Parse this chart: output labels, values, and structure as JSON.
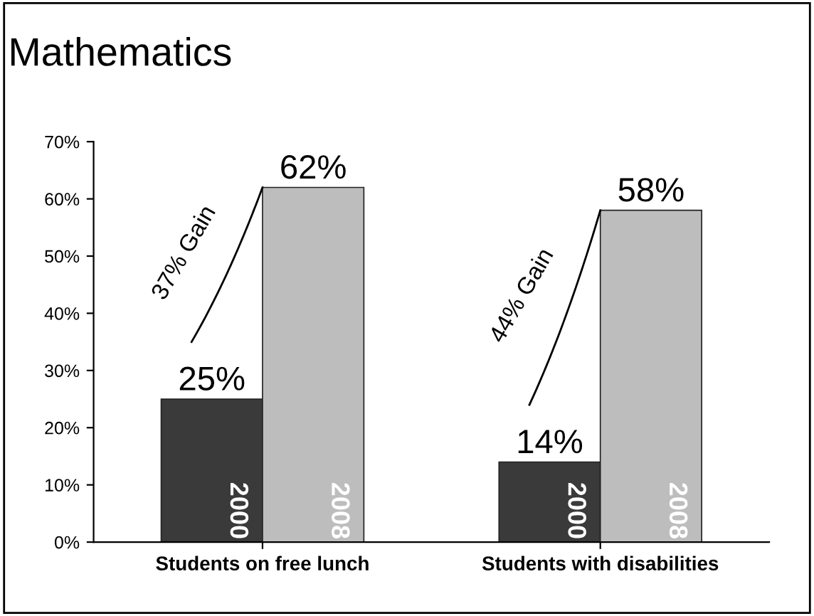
{
  "chart_data": {
    "type": "bar",
    "title": "Mathematics",
    "categories": [
      "Students on free lunch",
      "Students with disabilities"
    ],
    "series": [
      {
        "name": "2000",
        "color": "#3a3a3a",
        "values": [
          25,
          14
        ],
        "value_labels": [
          "25%",
          "14%"
        ]
      },
      {
        "name": "2008",
        "color": "#bdbdbd",
        "values": [
          62,
          58
        ],
        "value_labels": [
          "62%",
          "58%"
        ]
      }
    ],
    "ylim": [
      0,
      70
    ],
    "yticks": [
      {
        "value": 0,
        "label": "0%"
      },
      {
        "value": 10,
        "label": "10%"
      },
      {
        "value": 20,
        "label": "20%"
      },
      {
        "value": 30,
        "label": "30%"
      },
      {
        "value": 40,
        "label": "40%"
      },
      {
        "value": 50,
        "label": "50%"
      },
      {
        "value": 60,
        "label": "60%"
      },
      {
        "value": 70,
        "label": "70%"
      }
    ],
    "annotations": [
      "37% Gain",
      "44% Gain"
    ],
    "grid": false,
    "legend": false
  }
}
